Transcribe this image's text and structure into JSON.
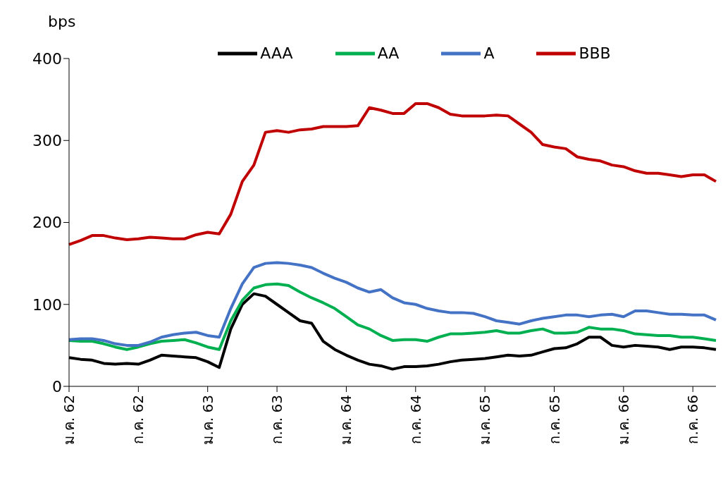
{
  "chart_data": {
    "type": "line",
    "ylabel": "bps",
    "categories": [
      "ม.ค. 62",
      null,
      null,
      null,
      null,
      null,
      "ก.ค. 62",
      null,
      null,
      null,
      null,
      null,
      "ม.ค. 63",
      null,
      null,
      null,
      null,
      null,
      "ก.ค. 63",
      null,
      null,
      null,
      null,
      null,
      "ม.ค. 64",
      null,
      null,
      null,
      null,
      null,
      "ก.ค. 64",
      null,
      null,
      null,
      null,
      null,
      "ม.ค. 65",
      null,
      null,
      null,
      null,
      null,
      "ก.ค. 65",
      null,
      null,
      null,
      null,
      null,
      "ม.ค. 66",
      null,
      null,
      null,
      null,
      null,
      "ก.ค. 66",
      null,
      null
    ],
    "series": [
      {
        "name": "AAA",
        "color": "#000000",
        "values": [
          35,
          33,
          32,
          28,
          27,
          28,
          27,
          32,
          38,
          37,
          36,
          35,
          30,
          23,
          70,
          100,
          113,
          110,
          100,
          90,
          80,
          77,
          55,
          45,
          38,
          32,
          27,
          25,
          21,
          24,
          24,
          25,
          27,
          30,
          32,
          33,
          34,
          36,
          38,
          37,
          38,
          42,
          46,
          47,
          52,
          60,
          60,
          50,
          48,
          50,
          49,
          48,
          45,
          48,
          48,
          47,
          45
        ]
      },
      {
        "name": "AA",
        "color": "#00b050",
        "values": [
          56,
          55,
          55,
          52,
          48,
          45,
          48,
          52,
          55,
          56,
          57,
          53,
          48,
          45,
          80,
          105,
          120,
          124,
          125,
          123,
          115,
          108,
          102,
          95,
          85,
          75,
          70,
          62,
          56,
          57,
          57,
          55,
          60,
          64,
          64,
          65,
          66,
          68,
          65,
          65,
          68,
          70,
          65,
          65,
          66,
          72,
          70,
          70,
          68,
          64,
          63,
          62,
          62,
          60,
          60,
          58,
          56
        ]
      },
      {
        "name": "A",
        "color": "#4472c4",
        "values": [
          57,
          58,
          58,
          56,
          52,
          50,
          50,
          54,
          60,
          63,
          65,
          66,
          62,
          60,
          95,
          125,
          145,
          150,
          151,
          150,
          148,
          145,
          138,
          132,
          127,
          120,
          115,
          118,
          108,
          102,
          100,
          95,
          92,
          90,
          90,
          89,
          85,
          80,
          78,
          76,
          80,
          83,
          85,
          87,
          87,
          85,
          87,
          88,
          85,
          92,
          92,
          90,
          88,
          88,
          87,
          87,
          81
        ]
      },
      {
        "name": "BBB",
        "color": "#c00000",
        "values": [
          173,
          178,
          184,
          184,
          181,
          179,
          180,
          182,
          181,
          180,
          180,
          185,
          188,
          186,
          210,
          250,
          270,
          310,
          312,
          310,
          313,
          314,
          317,
          317,
          317,
          318,
          340,
          337,
          333,
          333,
          345,
          345,
          340,
          332,
          330,
          330,
          330,
          331,
          330,
          320,
          310,
          295,
          292,
          290,
          280,
          277,
          275,
          270,
          268,
          263,
          260,
          260,
          258,
          256,
          258,
          258,
          250
        ]
      }
    ],
    "ylim": [
      0,
      400
    ],
    "yticks": [
      0,
      100,
      200,
      300,
      400
    ],
    "legend": "top",
    "grid": false
  }
}
